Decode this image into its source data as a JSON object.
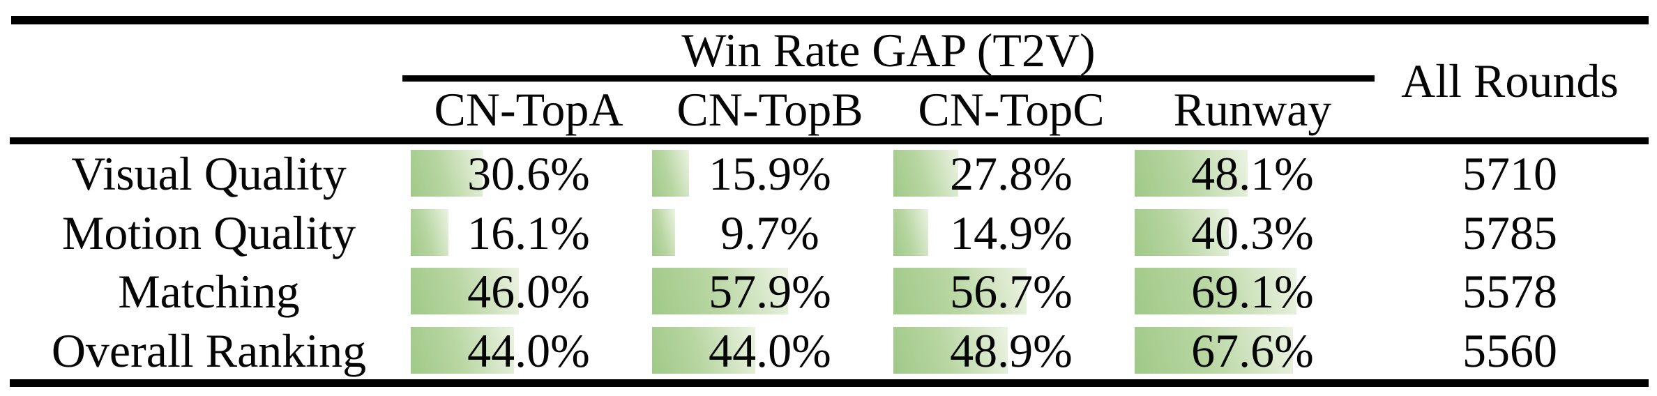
{
  "table": {
    "header": {
      "group_title": "Win Rate GAP (T2V)",
      "all_rounds": "All Rounds",
      "columns": [
        "CN-TopA",
        "CN-TopB",
        "CN-TopC",
        "Runway"
      ]
    },
    "rows": [
      {
        "label": "Visual Quality",
        "cells": [
          {
            "text": "30.6%",
            "value": 30.6
          },
          {
            "text": "15.9%",
            "value": 15.9
          },
          {
            "text": "27.8%",
            "value": 27.8
          },
          {
            "text": "48.1%",
            "value": 48.1
          }
        ],
        "all_rounds": "5710"
      },
      {
        "label": "Motion Quality",
        "cells": [
          {
            "text": "16.1%",
            "value": 16.1
          },
          {
            "text": "9.7%",
            "value": 9.7
          },
          {
            "text": "14.9%",
            "value": 14.9
          },
          {
            "text": "40.3%",
            "value": 40.3
          }
        ],
        "all_rounds": "5785"
      },
      {
        "label": "Matching",
        "cells": [
          {
            "text": "46.0%",
            "value": 46.0
          },
          {
            "text": "57.9%",
            "value": 57.9
          },
          {
            "text": "56.7%",
            "value": 56.7
          },
          {
            "text": "69.1%",
            "value": 69.1
          }
        ],
        "all_rounds": "5578"
      },
      {
        "label": "Overall Ranking",
        "cells": [
          {
            "text": "44.0%",
            "value": 44.0
          },
          {
            "text": "44.0%",
            "value": 44.0
          },
          {
            "text": "48.9%",
            "value": 48.9
          },
          {
            "text": "67.6%",
            "value": 67.6
          }
        ],
        "all_rounds": "5560"
      }
    ]
  },
  "colors": {
    "bar_gradient_start": "#9fc987",
    "bar_gradient_mid": "#b8d6a2",
    "bar_gradient_end": "#ecf3e3",
    "rule": "#000000",
    "text": "#050505",
    "background": "#ffffff"
  },
  "chart_data": {
    "type": "table",
    "title": "Win Rate GAP (T2V)",
    "columns": [
      "CN-TopA",
      "CN-TopB",
      "CN-TopC",
      "Runway",
      "All Rounds"
    ],
    "row_labels": [
      "Visual Quality",
      "Motion Quality",
      "Matching",
      "Overall Ranking"
    ],
    "series": [
      {
        "name": "CN-TopA",
        "values": [
          30.6,
          16.1,
          46.0,
          44.0
        ]
      },
      {
        "name": "CN-TopB",
        "values": [
          15.9,
          9.7,
          57.9,
          44.0
        ]
      },
      {
        "name": "CN-TopC",
        "values": [
          27.8,
          14.9,
          56.7,
          48.9
        ]
      },
      {
        "name": "Runway",
        "values": [
          48.1,
          40.3,
          69.1,
          67.6
        ]
      }
    ],
    "all_rounds_values": [
      5710,
      5785,
      5578,
      5560
    ],
    "unit": "%",
    "layout_hints": "in-cell green gradient data bars, bar length proportional to percentage (100% = full column width); thick black rules above header, below sub-header row, and at table bottom; thin rule spans only the four win-rate columns under the group title"
  }
}
